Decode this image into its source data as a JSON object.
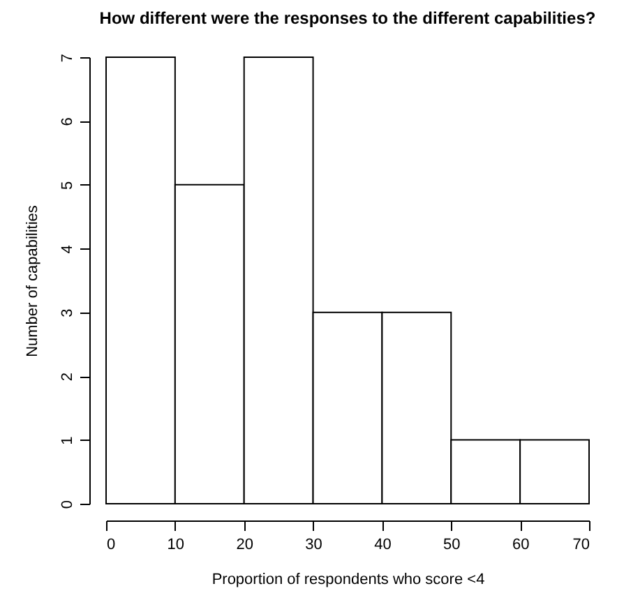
{
  "chart_data": {
    "type": "histogram",
    "title": "How different were the responses to the different capabilities?",
    "xlabel": "Proportion of respondents who score <4",
    "ylabel": "Number of capabilities",
    "bins": [
      0,
      10,
      20,
      30,
      40,
      50,
      60,
      70
    ],
    "values": [
      7,
      5,
      7,
      3,
      3,
      1,
      1
    ],
    "color": "#ffffff",
    "xlim": [
      0,
      70
    ],
    "xticks": [
      0,
      10,
      20,
      30,
      40,
      50,
      60,
      70
    ],
    "ylim": [
      0,
      7
    ],
    "yticks": [
      0,
      1,
      2,
      3,
      4,
      5,
      6,
      7
    ],
    "grid": false
  }
}
